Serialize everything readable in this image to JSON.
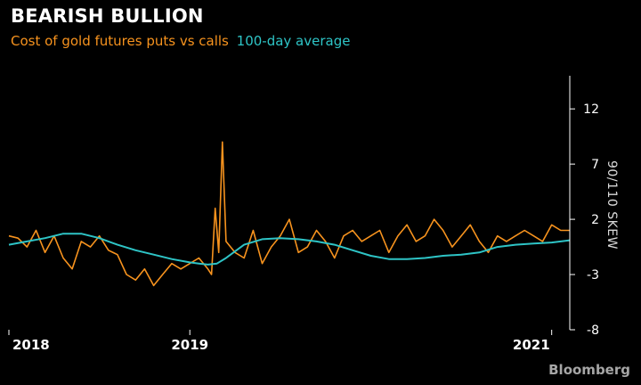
{
  "header": {
    "title": "BEARISH BULLION",
    "subtitle_series_1": "Cost of gold futures puts vs calls",
    "subtitle_series_2": "100-day average"
  },
  "brand": "Bloomberg",
  "colors": {
    "background": "#000000",
    "skew": "#f7931e",
    "average": "#2ec4c6",
    "axis": "#ffffff"
  },
  "chart_data": {
    "type": "line",
    "ylabel": "90/110 SKEW",
    "xlim": [
      2018.0,
      2021.1
    ],
    "ylim": [
      -8,
      15
    ],
    "yticks": [
      12,
      7,
      2,
      -3,
      -8
    ],
    "xticks": [
      {
        "label": "2018",
        "value": 2018.0
      },
      {
        "label": "2019",
        "value": 2019.0
      },
      {
        "label": "2021",
        "value": 2021.0
      }
    ],
    "grid": false,
    "series": [
      {
        "name": "Cost of gold futures puts vs calls",
        "color": "#f7931e",
        "x": [
          2018.0,
          2018.05,
          2018.1,
          2018.15,
          2018.2,
          2018.25,
          2018.3,
          2018.35,
          2018.4,
          2018.45,
          2018.5,
          2018.55,
          2018.6,
          2018.65,
          2018.7,
          2018.75,
          2018.8,
          2018.85,
          2018.9,
          2018.95,
          2019.0,
          2019.05,
          2019.1,
          2019.12,
          2019.14,
          2019.16,
          2019.18,
          2019.2,
          2019.25,
          2019.3,
          2019.35,
          2019.4,
          2019.45,
          2019.5,
          2019.55,
          2019.6,
          2019.65,
          2019.7,
          2019.75,
          2019.8,
          2019.85,
          2019.9,
          2019.95,
          2020.0,
          2020.05,
          2020.1,
          2020.15,
          2020.2,
          2020.25,
          2020.3,
          2020.35,
          2020.4,
          2020.45,
          2020.5,
          2020.55,
          2020.6,
          2020.65,
          2020.7,
          2020.75,
          2020.8,
          2020.85,
          2020.9,
          2020.95,
          2021.0,
          2021.05,
          2021.1
        ],
        "y": [
          0.5,
          0.3,
          -0.5,
          1.0,
          -1.0,
          0.5,
          -1.5,
          -2.5,
          0.0,
          -0.5,
          0.5,
          -0.8,
          -1.2,
          -3.0,
          -3.5,
          -2.5,
          -4.0,
          -3.0,
          -2.0,
          -2.5,
          -2.0,
          -1.5,
          -2.5,
          -3.0,
          3.0,
          -1.0,
          9.0,
          0.0,
          -1.0,
          -1.5,
          1.0,
          -2.0,
          -0.5,
          0.5,
          2.0,
          -1.0,
          -0.5,
          1.0,
          0.0,
          -1.5,
          0.5,
          1.0,
          0.0,
          0.5,
          1.0,
          -1.0,
          0.5,
          1.5,
          0.0,
          0.5,
          2.0,
          1.0,
          -0.5,
          0.5,
          1.5,
          0.0,
          -1.0,
          0.5,
          0.0,
          0.5,
          1.0,
          0.5,
          0.0,
          1.5,
          1.0,
          1.0
        ]
      },
      {
        "name": "100-day average",
        "color": "#2ec4c6",
        "x": [
          2018.0,
          2018.1,
          2018.2,
          2018.3,
          2018.4,
          2018.5,
          2018.6,
          2018.7,
          2018.8,
          2018.9,
          2019.0,
          2019.05,
          2019.1,
          2019.15,
          2019.2,
          2019.3,
          2019.4,
          2019.5,
          2019.6,
          2019.7,
          2019.8,
          2019.9,
          2020.0,
          2020.1,
          2020.2,
          2020.3,
          2020.4,
          2020.5,
          2020.6,
          2020.7,
          2020.8,
          2020.9,
          2021.0,
          2021.1
        ],
        "y": [
          -0.3,
          0.0,
          0.3,
          0.7,
          0.7,
          0.3,
          -0.3,
          -0.8,
          -1.2,
          -1.6,
          -1.9,
          -2.0,
          -2.1,
          -2.0,
          -1.5,
          -0.3,
          0.2,
          0.3,
          0.2,
          0.0,
          -0.3,
          -0.8,
          -1.3,
          -1.6,
          -1.6,
          -1.5,
          -1.3,
          -1.2,
          -1.0,
          -0.5,
          -0.3,
          -0.2,
          -0.1,
          0.1
        ]
      }
    ]
  }
}
